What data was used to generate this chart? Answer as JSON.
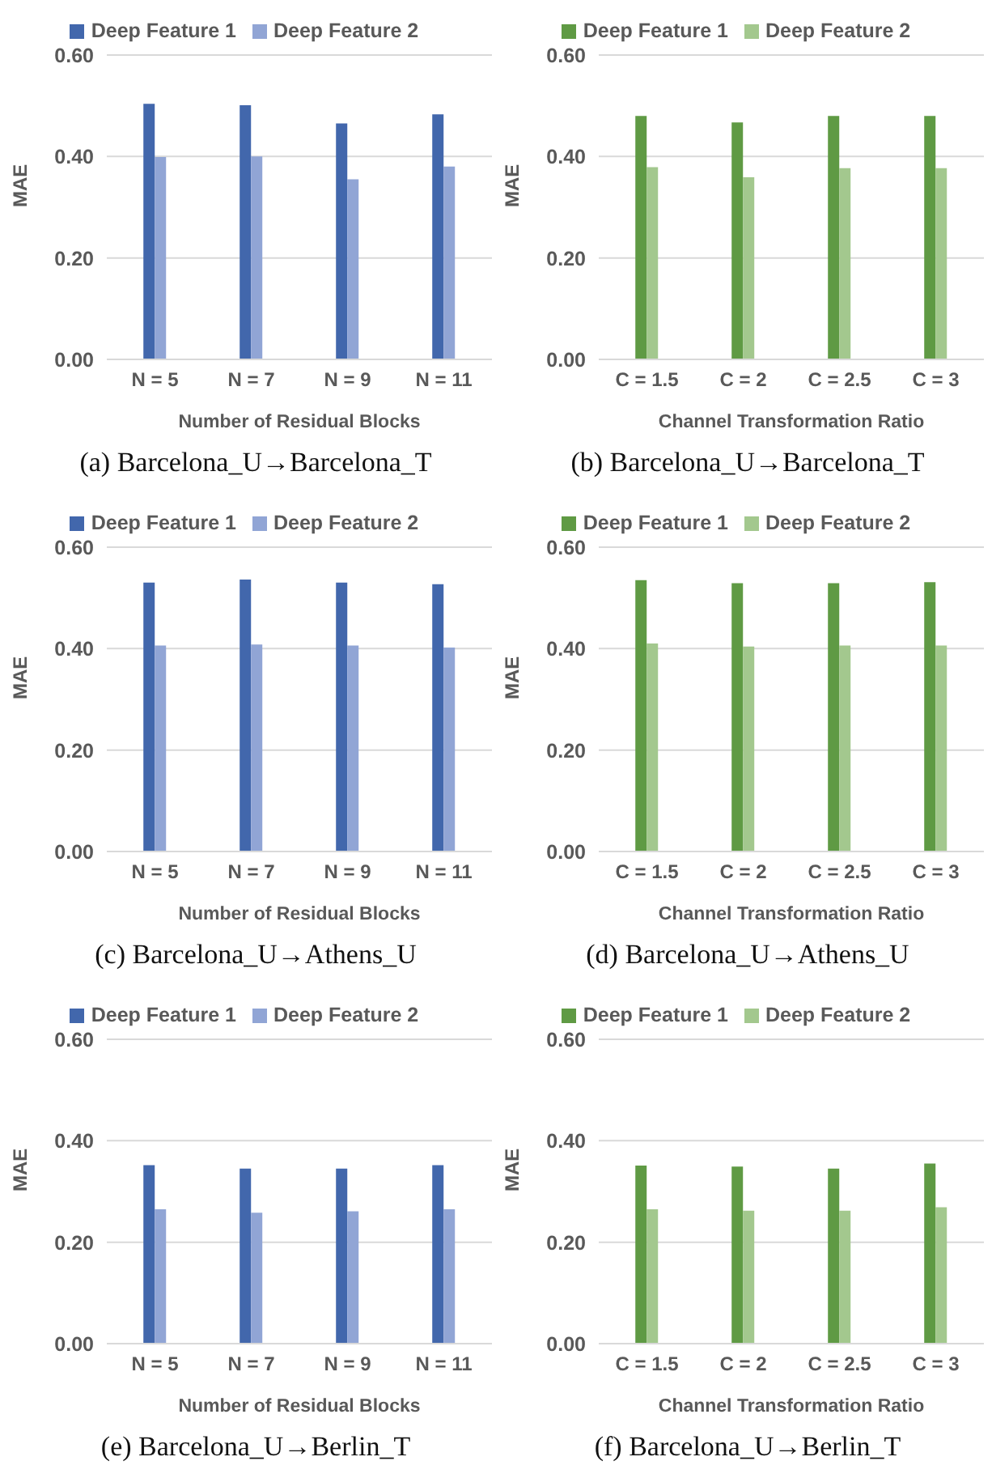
{
  "chart_data": [
    {
      "type": "bar",
      "title": "(a)  Barcelona_U→Barcelona_T",
      "xlabel": "Number of Residual Blocks",
      "ylabel": "MAE",
      "categories": [
        "N = 5",
        "N = 7",
        "N = 9",
        "N = 11"
      ],
      "series": [
        {
          "name": "Deep Feature 1",
          "color": "#4267ac",
          "values": [
            0.504,
            0.501,
            0.465,
            0.483
          ]
        },
        {
          "name": "Deep Feature 2",
          "color": "#91a5d5",
          "values": [
            0.399,
            0.4,
            0.355,
            0.38
          ]
        }
      ],
      "ylim": [
        0,
        0.6
      ],
      "yticks": [
        {
          "value": 0,
          "label": "0.00"
        },
        {
          "value": 0.2,
          "label": "0.20"
        },
        {
          "value": 0.4,
          "label": "0.40"
        },
        {
          "value": 0.6,
          "label": "0.60"
        }
      ],
      "grid": "y",
      "legend": "top"
    },
    {
      "type": "bar",
      "title": "(b)  Barcelona_U→Barcelona_T",
      "xlabel": "Channel Transformation Ratio",
      "ylabel": "MAE",
      "categories": [
        "C = 1.5",
        "C = 2",
        "C = 2.5",
        "C = 3"
      ],
      "series": [
        {
          "name": "Deep Feature 1",
          "color": "#5f9a44",
          "values": [
            0.48,
            0.467,
            0.48,
            0.48
          ]
        },
        {
          "name": "Deep Feature 2",
          "color": "#a3c88e",
          "values": [
            0.379,
            0.359,
            0.377,
            0.377
          ]
        }
      ],
      "ylim": [
        0,
        0.6
      ],
      "yticks": [
        {
          "value": 0,
          "label": "0.00"
        },
        {
          "value": 0.2,
          "label": "0.20"
        },
        {
          "value": 0.4,
          "label": "0.40"
        },
        {
          "value": 0.6,
          "label": "0.60"
        }
      ],
      "grid": "y",
      "legend": "top"
    },
    {
      "type": "bar",
      "title": "(c)  Barcelona_U→Athens_U",
      "xlabel": "Number of Residual Blocks",
      "ylabel": "MAE",
      "categories": [
        "N = 5",
        "N = 7",
        "N = 9",
        "N = 11"
      ],
      "series": [
        {
          "name": "Deep Feature 1",
          "color": "#4267ac",
          "values": [
            0.53,
            0.536,
            0.53,
            0.527
          ]
        },
        {
          "name": "Deep Feature 2",
          "color": "#91a5d5",
          "values": [
            0.406,
            0.408,
            0.406,
            0.402
          ]
        }
      ],
      "ylim": [
        0,
        0.6
      ],
      "yticks": [
        {
          "value": 0,
          "label": "0.00"
        },
        {
          "value": 0.2,
          "label": "0.20"
        },
        {
          "value": 0.4,
          "label": "0.40"
        },
        {
          "value": 0.6,
          "label": "0.60"
        }
      ],
      "grid": "y",
      "legend": "top"
    },
    {
      "type": "bar",
      "title": "(d)  Barcelona_U→Athens_U",
      "xlabel": "Channel Transformation Ratio",
      "ylabel": "MAE",
      "categories": [
        "C = 1.5",
        "C = 2",
        "C = 2.5",
        "C = 3"
      ],
      "series": [
        {
          "name": "Deep Feature 1",
          "color": "#5f9a44",
          "values": [
            0.535,
            0.529,
            0.529,
            0.531
          ]
        },
        {
          "name": "Deep Feature 2",
          "color": "#a3c88e",
          "values": [
            0.41,
            0.404,
            0.406,
            0.406
          ]
        }
      ],
      "ylim": [
        0,
        0.6
      ],
      "yticks": [
        {
          "value": 0,
          "label": "0.00"
        },
        {
          "value": 0.2,
          "label": "0.20"
        },
        {
          "value": 0.4,
          "label": "0.40"
        },
        {
          "value": 0.6,
          "label": "0.60"
        }
      ],
      "grid": "y",
      "legend": "top"
    },
    {
      "type": "bar",
      "title": "(e)  Barcelona_U→Berlin_T",
      "xlabel": "Number of Residual Blocks",
      "ylabel": "MAE",
      "categories": [
        "N = 5",
        "N = 7",
        "N = 9",
        "N = 11"
      ],
      "series": [
        {
          "name": "Deep Feature 1",
          "color": "#4267ac",
          "values": [
            0.352,
            0.345,
            0.345,
            0.352
          ]
        },
        {
          "name": "Deep Feature 2",
          "color": "#91a5d5",
          "values": [
            0.265,
            0.258,
            0.261,
            0.265
          ]
        }
      ],
      "ylim": [
        0,
        0.6
      ],
      "yticks": [
        {
          "value": 0,
          "label": "0.00"
        },
        {
          "value": 0.2,
          "label": "0.20"
        },
        {
          "value": 0.4,
          "label": "0.40"
        },
        {
          "value": 0.6,
          "label": "0.60"
        }
      ],
      "grid": "y",
      "legend": "top"
    },
    {
      "type": "bar",
      "title": "(f)  Barcelona_U→Berlin_T",
      "xlabel": "Channel Transformation Ratio",
      "ylabel": "MAE",
      "categories": [
        "C = 1.5",
        "C = 2",
        "C = 2.5",
        "C = 3"
      ],
      "series": [
        {
          "name": "Deep Feature 1",
          "color": "#5f9a44",
          "values": [
            0.351,
            0.349,
            0.345,
            0.355
          ]
        },
        {
          "name": "Deep Feature 2",
          "color": "#a3c88e",
          "values": [
            0.265,
            0.262,
            0.262,
            0.269
          ]
        }
      ],
      "ylim": [
        0,
        0.6
      ],
      "yticks": [
        {
          "value": 0,
          "label": "0.00"
        },
        {
          "value": 0.2,
          "label": "0.20"
        },
        {
          "value": 0.4,
          "label": "0.40"
        },
        {
          "value": 0.6,
          "label": "0.60"
        }
      ],
      "grid": "y",
      "legend": "top"
    }
  ]
}
